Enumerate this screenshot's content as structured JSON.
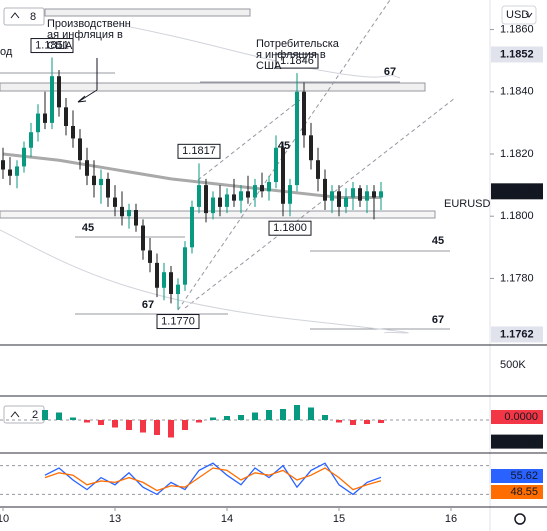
{
  "chart_data": [
    {
      "type": "candlestick",
      "symbol": "EURUSD",
      "currency": "USD",
      "legend_count": "8",
      "open": [
        1.1818,
        1.1815,
        1.1813,
        1.1816,
        1.1822,
        1.1827,
        1.1833,
        1.183,
        1.1845,
        1.1835,
        1.1829,
        1.1825,
        1.1818,
        1.1813,
        1.181,
        1.1812,
        1.1806,
        1.1803,
        1.18,
        1.1802,
        1.1797,
        1.1789,
        1.1785,
        1.1777,
        1.1782,
        1.1775,
        1.1778,
        1.179,
        1.1803,
        1.181,
        1.1801,
        1.1806,
        1.1803,
        1.1807,
        1.1805,
        1.1808,
        1.1806,
        1.181,
        1.1808,
        1.1811,
        1.1822,
        1.1804,
        1.181,
        1.184,
        1.1826,
        1.1818,
        1.1812,
        1.1805,
        1.1808,
        1.1803,
        1.1806,
        1.1809,
        1.1805,
        1.1808,
        1.1806
      ],
      "high": [
        1.1822,
        1.1819,
        1.1818,
        1.1824,
        1.183,
        1.1836,
        1.184,
        1.1851,
        1.1847,
        1.1838,
        1.1834,
        1.1828,
        1.1822,
        1.1818,
        1.1815,
        1.1814,
        1.181,
        1.1808,
        1.1804,
        1.1804,
        1.1799,
        1.1793,
        1.1788,
        1.1785,
        1.1784,
        1.178,
        1.1792,
        1.1805,
        1.1817,
        1.1812,
        1.1808,
        1.181,
        1.1809,
        1.1812,
        1.181,
        1.1813,
        1.1812,
        1.1814,
        1.1813,
        1.1826,
        1.1824,
        1.1812,
        1.1846,
        1.1843,
        1.183,
        1.1822,
        1.1815,
        1.181,
        1.181,
        1.1809,
        1.1811,
        1.181,
        1.181,
        1.181,
        1.1811
      ],
      "low": [
        1.1812,
        1.181,
        1.1809,
        1.1814,
        1.1819,
        1.1824,
        1.1828,
        1.1828,
        1.1832,
        1.1826,
        1.1822,
        1.1815,
        1.181,
        1.1806,
        1.1804,
        1.1803,
        1.18,
        1.1797,
        1.1796,
        1.1795,
        1.1786,
        1.1782,
        1.1774,
        1.1773,
        1.1772,
        1.177,
        1.1776,
        1.1788,
        1.1801,
        1.1798,
        1.1799,
        1.18,
        1.1801,
        1.1803,
        1.1801,
        1.1804,
        1.1803,
        1.1806,
        1.1805,
        1.1809,
        1.18,
        1.18,
        1.1808,
        1.1822,
        1.1815,
        1.1808,
        1.1802,
        1.1801,
        1.18,
        1.1801,
        1.1802,
        1.1803,
        1.1801,
        1.1799,
        1.1802
      ],
      "close": [
        1.1815,
        1.1813,
        1.1816,
        1.1822,
        1.1827,
        1.1833,
        1.183,
        1.1845,
        1.1835,
        1.1829,
        1.1825,
        1.1818,
        1.1813,
        1.181,
        1.1812,
        1.1806,
        1.1803,
        1.18,
        1.1802,
        1.1797,
        1.1789,
        1.1785,
        1.1777,
        1.1782,
        1.1775,
        1.1778,
        1.179,
        1.1803,
        1.181,
        1.1801,
        1.1806,
        1.1803,
        1.1807,
        1.1805,
        1.1808,
        1.1806,
        1.181,
        1.1808,
        1.1811,
        1.1822,
        1.1804,
        1.181,
        1.184,
        1.1826,
        1.1818,
        1.1812,
        1.1805,
        1.1808,
        1.1803,
        1.1806,
        1.1809,
        1.1805,
        1.1808,
        1.1806,
        1.1808
      ],
      "up_color": "#089981",
      "down_color": "#222222",
      "ma": {
        "x": [
          0,
          8,
          16,
          24,
          32,
          40,
          48,
          54
        ],
        "values": [
          1.182,
          1.1818,
          1.1815,
          1.1812,
          1.181,
          1.1808,
          1.1806,
          1.1806
        ],
        "color": "#a9a9a9"
      },
      "ylim": [
        1.17586,
        1.18695
      ],
      "yticks": [
        {
          "value": 1.186,
          "label": "1.1860"
        },
        {
          "value": 1.184,
          "label": "1.1840"
        },
        {
          "value": 1.182,
          "label": "1.1820"
        },
        {
          "value": 1.18,
          "label": "1.1800"
        },
        {
          "value": 1.178,
          "label": "1.1780"
        }
      ],
      "xticks": [
        {
          "value": 0,
          "label": "10"
        },
        {
          "value": 16,
          "label": "13"
        },
        {
          "value": 32,
          "label": "14"
        },
        {
          "value": 48,
          "label": "15"
        },
        {
          "value": 64,
          "label": "16"
        }
      ],
      "price_badges": [
        {
          "value": 1.1852,
          "label": "1.1852"
        },
        {
          "value": 1.1808,
          "label": "1.1808"
        },
        {
          "value": 1.1762,
          "label": "1.1762"
        }
      ],
      "callouts": [
        {
          "x": 7,
          "value": 1.1851,
          "label": "1.1851"
        },
        {
          "x": 42,
          "value": 1.1846,
          "label": "1.1846"
        },
        {
          "x": 28,
          "value": 1.1817,
          "label": "1.1817"
        },
        {
          "x": 41,
          "value": 1.18,
          "label": "1.1800"
        },
        {
          "x": 25,
          "value": 1.177,
          "label": "1.1770"
        }
      ],
      "level_labels": [
        "45",
        "67",
        "67",
        "45",
        "45",
        "67"
      ],
      "annotations": [
        [
          "Производственн",
          "ая инфляция в",
          "США"
        ],
        [
          "Потребительска",
          "я инфляция в",
          "США"
        ],
        [
          "од"
        ]
      ],
      "volume_label": "500K"
    },
    {
      "type": "macd",
      "legend_count": "2",
      "x": [
        6,
        8,
        10,
        12,
        14,
        16,
        18,
        20,
        22,
        24,
        26,
        28,
        30,
        32,
        34,
        36,
        38,
        40,
        42,
        44,
        46,
        48,
        50,
        52,
        54
      ],
      "values": [
        20,
        15,
        5,
        -5,
        -10,
        -15,
        -20,
        -25,
        -30,
        -35,
        -20,
        -5,
        5,
        8,
        10,
        15,
        20,
        22,
        30,
        25,
        10,
        -5,
        -10,
        -8,
        -6
      ],
      "ylim": [
        -60,
        40
      ],
      "badges": [
        {
          "value": 0,
          "label": "0.0000"
        },
        {
          "value": -31.21,
          "label": "-31.21"
        }
      ]
    },
    {
      "type": "stochastic",
      "x": [
        6,
        8,
        10,
        12,
        14,
        16,
        18,
        20,
        22,
        24,
        26,
        28,
        30,
        32,
        34,
        36,
        38,
        40,
        42,
        44,
        46,
        48,
        50,
        52,
        54
      ],
      "series": [
        {
          "color": "#2962ff",
          "values": [
            60,
            75,
            50,
            30,
            55,
            40,
            65,
            35,
            20,
            45,
            30,
            70,
            85,
            60,
            40,
            75,
            55,
            80,
            35,
            70,
            85,
            40,
            20,
            45,
            55.62
          ],
          "value_label": "55.62"
        },
        {
          "color": "#ff6d00",
          "values": [
            55,
            65,
            60,
            40,
            48,
            45,
            55,
            45,
            28,
            38,
            35,
            55,
            75,
            70,
            50,
            65,
            60,
            70,
            50,
            60,
            75,
            55,
            30,
            40,
            48.55
          ],
          "value_label": "48.55"
        }
      ],
      "ylim": [
        0,
        100
      ],
      "levels": [
        80,
        20
      ]
    }
  ]
}
